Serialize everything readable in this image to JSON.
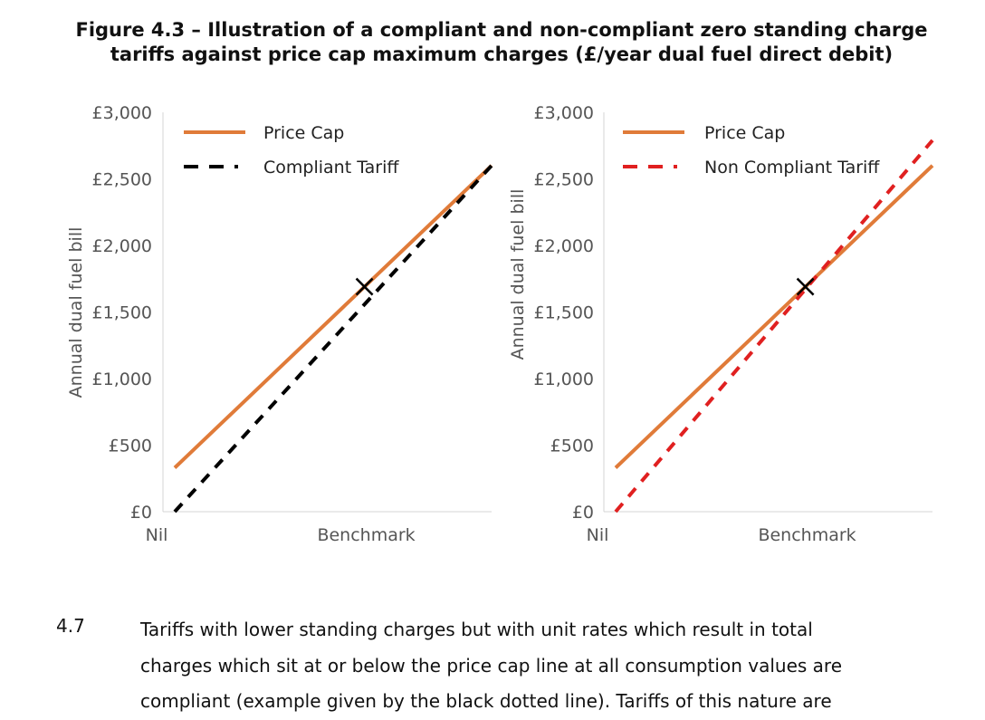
{
  "figure": {
    "title_line1": "Figure 4.3 – Illustration of a compliant and non-compliant zero standing charge",
    "title_line2": "tariffs against price cap maximum charges (£/year dual fuel direct debit)"
  },
  "chart_data": [
    {
      "type": "line",
      "ylabel": "Annual dual fuel bill",
      "y_ticks": [
        "£0",
        "£500",
        "£1,000",
        "£1,500",
        "£2,000",
        "£2,500",
        "£3,000"
      ],
      "y_tick_values": [
        0,
        500,
        1000,
        1500,
        2000,
        2500,
        3000
      ],
      "ylim": [
        0,
        3000
      ],
      "x_ticks": [
        "Nil",
        "Benchmark"
      ],
      "x_tick_values": [
        0,
        1
      ],
      "xlim": [
        0,
        1.67
      ],
      "grid": false,
      "legend_position": "top-left",
      "series": [
        {
          "name": "Price Cap",
          "style": "solid",
          "color": "#E07B39",
          "x": [
            0,
            1.67
          ],
          "y": [
            330,
            2600
          ]
        },
        {
          "name": "Compliant Tariff",
          "style": "dashed",
          "color": "#000000",
          "x": [
            0,
            1.67
          ],
          "y": [
            0,
            2600
          ]
        }
      ],
      "annotations": [
        {
          "marker": "x",
          "x": 1,
          "y": 1690
        }
      ]
    },
    {
      "type": "line",
      "ylabel": "Annual dual fuel bill",
      "y_ticks": [
        "£0",
        "£500",
        "£1,000",
        "£1,500",
        "£2,000",
        "£2,500",
        "£3,000"
      ],
      "y_tick_values": [
        0,
        500,
        1000,
        1500,
        2000,
        2500,
        3000
      ],
      "ylim": [
        0,
        3000
      ],
      "x_ticks": [
        "Nil",
        "Benchmark"
      ],
      "x_tick_values": [
        0,
        1
      ],
      "xlim": [
        0,
        1.67
      ],
      "grid": false,
      "legend_position": "top-left",
      "series": [
        {
          "name": "Price Cap",
          "style": "solid",
          "color": "#E07B39",
          "x": [
            0,
            1.67
          ],
          "y": [
            330,
            2600
          ]
        },
        {
          "name": "Non Compliant Tariff",
          "style": "dashed",
          "color": "#E02020",
          "x": [
            0,
            1.67
          ],
          "y": [
            0,
            2790
          ]
        }
      ],
      "annotations": [
        {
          "marker": "x",
          "x": 1,
          "y": 1690
        }
      ]
    }
  ],
  "paragraph": {
    "number": "4.7",
    "lines": [
      "Tariffs with lower standing charges but with unit rates which result in total",
      "charges which sit at or below the price cap line at all consumption values are",
      "compliant (example given by the black dotted line). Tariffs of this nature are"
    ]
  }
}
